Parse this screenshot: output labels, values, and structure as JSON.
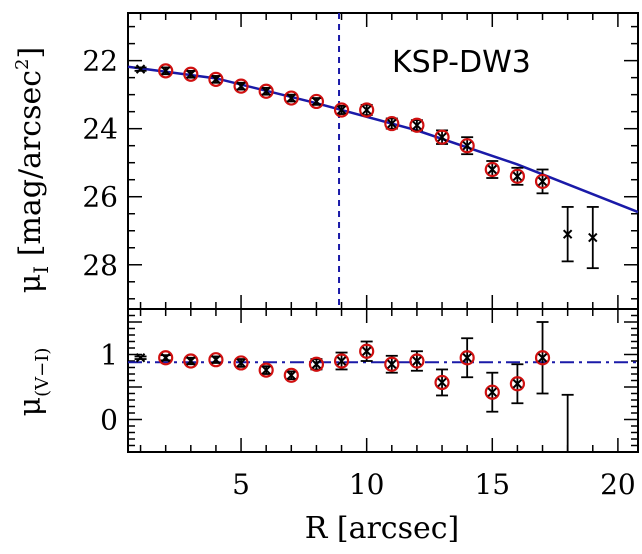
{
  "colors": {
    "model": "#1a1aa8",
    "circle": "#d01010",
    "point": "#000000"
  },
  "chart_data": [
    {
      "type": "scatter",
      "panel": "top",
      "annotation": "KSP-DW3",
      "ylabel_main": "μ",
      "ylabel_sub": "I",
      "ylabel_rest": " [mag/arcsec",
      "ylabel_sup": "2",
      "ylabel_end": "]",
      "xlim": [
        0.5,
        20.8
      ],
      "ylim": [
        29.3,
        20.6
      ],
      "yticks": [
        22,
        24,
        26,
        28
      ],
      "vline_x": 8.9,
      "series": [
        {
          "marker": "x+circle",
          "x": [
            2,
            3,
            4,
            5,
            6,
            7,
            8,
            9,
            10,
            11,
            12,
            13,
            14,
            15,
            16,
            17
          ],
          "y": [
            22.3,
            22.4,
            22.55,
            22.75,
            22.9,
            23.1,
            23.2,
            23.45,
            23.45,
            23.85,
            23.9,
            24.25,
            24.5,
            25.2,
            25.4,
            25.55
          ],
          "err": [
            0.1,
            0.1,
            0.1,
            0.1,
            0.1,
            0.1,
            0.1,
            0.12,
            0.15,
            0.15,
            0.15,
            0.2,
            0.25,
            0.25,
            0.25,
            0.35
          ]
        },
        {
          "marker": "x",
          "x": [
            1,
            18,
            19
          ],
          "y": [
            22.25,
            27.1,
            27.2
          ],
          "err": [
            0.05,
            0.8,
            0.9
          ]
        }
      ],
      "model_line": {
        "x": [
          0.5,
          4,
          8,
          12,
          16,
          20.8
        ],
        "y": [
          22.18,
          22.52,
          23.25,
          24.05,
          25.05,
          26.45
        ]
      }
    },
    {
      "type": "scatter",
      "panel": "bottom",
      "xlabel": "R [arcsec]",
      "ylabel_main": "μ",
      "ylabel_sub": "(V−I)",
      "xlim": [
        0.5,
        20.8
      ],
      "ylim": [
        -0.5,
        1.7
      ],
      "xticks": [
        5,
        10,
        15,
        20
      ],
      "yticks": [
        0,
        0.5,
        1
      ],
      "ytick_labels": [
        "0",
        "",
        "1"
      ],
      "hline_y": 0.88,
      "series": [
        {
          "marker": "x+circle",
          "x": [
            2,
            3,
            4,
            5,
            6,
            7,
            8,
            9,
            10,
            11,
            12,
            13,
            14,
            15,
            16,
            17
          ],
          "y": [
            0.95,
            0.9,
            0.92,
            0.87,
            0.76,
            0.68,
            0.85,
            0.9,
            1.05,
            0.85,
            0.9,
            0.57,
            0.95,
            0.42,
            0.55,
            0.95
          ],
          "err": [
            0.04,
            0.05,
            0.05,
            0.06,
            0.06,
            0.06,
            0.08,
            0.13,
            0.15,
            0.13,
            0.15,
            0.2,
            0.3,
            0.3,
            0.3,
            0.55
          ]
        },
        {
          "marker": "x",
          "x": [
            1
          ],
          "y": [
            0.95
          ],
          "err": [
            0.02
          ]
        },
        {
          "marker": "none",
          "x": [
            18
          ],
          "y": [
            -0.5
          ],
          "err_up": [
            0.88
          ],
          "err_down": [
            0
          ]
        }
      ]
    }
  ]
}
